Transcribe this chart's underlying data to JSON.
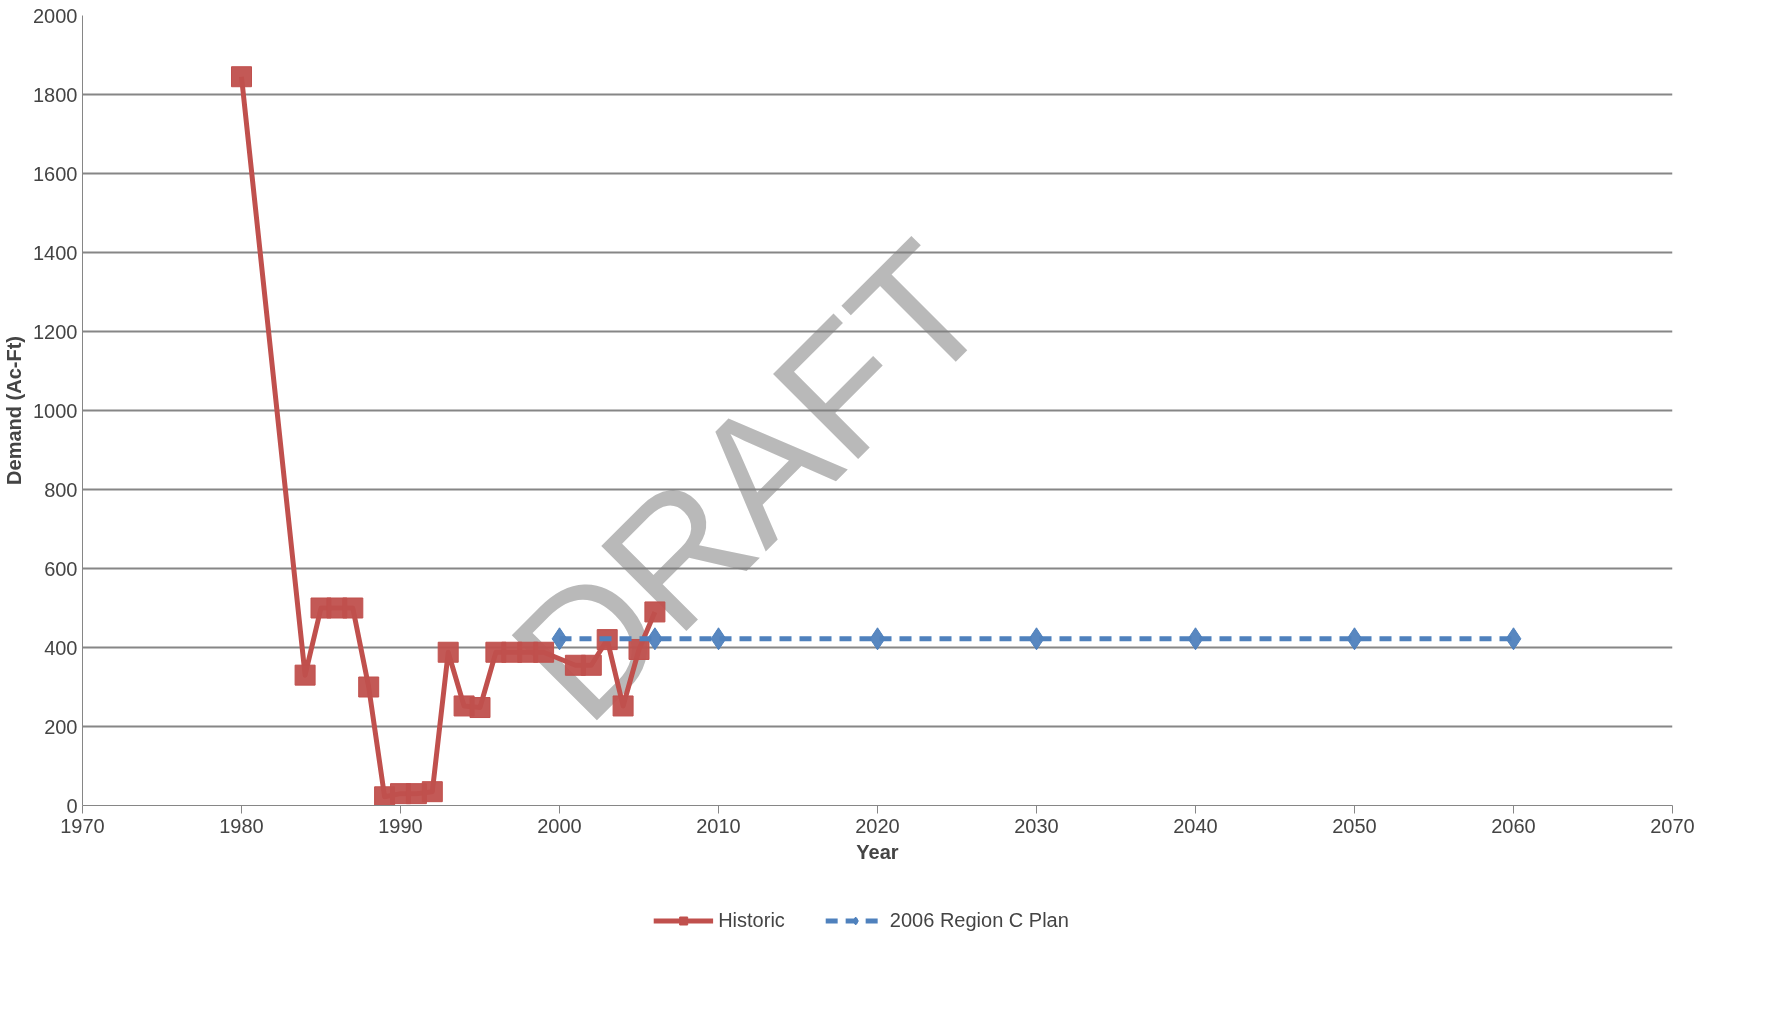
{
  "chart_data": {
    "type": "line",
    "xlabel": "Year",
    "ylabel": "Demand (Ac-Ft)",
    "xlim": [
      1970,
      2070
    ],
    "xticks": [
      1970,
      1980,
      1990,
      2000,
      2010,
      2020,
      2030,
      2040,
      2050,
      2060,
      2070
    ],
    "ylim": [
      0,
      2000
    ],
    "yticks": [
      0,
      200,
      400,
      600,
      800,
      1000,
      1200,
      1400,
      1600,
      1800,
      2000
    ],
    "grid": "y",
    "legend": "bottom",
    "annotations": [
      "DRAFT"
    ],
    "series": [
      {
        "name": "Historic",
        "color": "#c0504d",
        "marker": "square",
        "line_style": "solid",
        "x": [
          1980,
          1984,
          1985,
          1986,
          1987,
          1988,
          1989,
          1990,
          1991,
          1992,
          1993,
          1994,
          1995,
          1996,
          1997,
          1998,
          1999,
          2001,
          2002,
          2003,
          2004,
          2005,
          2006
        ],
        "values": [
          1845,
          330,
          500,
          500,
          500,
          300,
          22,
          30,
          30,
          35,
          388,
          252,
          248,
          388,
          388,
          388,
          388,
          355,
          355,
          420,
          252,
          395,
          490
        ]
      },
      {
        "name": "2006 Region C Plan",
        "color": "#4f81bd",
        "marker": "diamond",
        "line_style": "dashed",
        "x": [
          2000,
          2006,
          2010,
          2020,
          2030,
          2040,
          2050,
          2060
        ],
        "values": [
          422,
          422,
          422,
          422,
          422,
          422,
          422,
          422
        ]
      }
    ]
  }
}
